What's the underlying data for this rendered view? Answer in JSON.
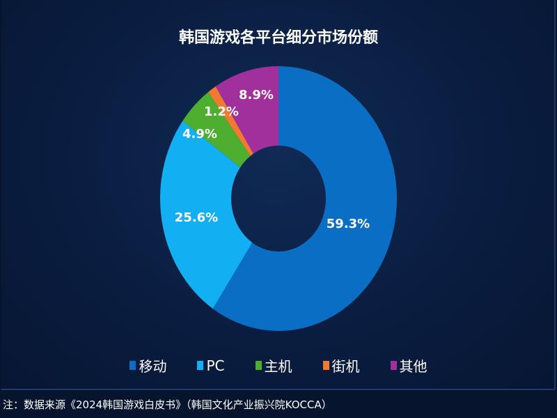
{
  "chart_data": {
    "type": "pie",
    "title": "韩国游戏各平台细分市场份额",
    "donut": true,
    "legend_position": "bottom",
    "slices": [
      {
        "label": "移动",
        "value": 59.3,
        "display": "59.3%",
        "color": "#0a6fc4"
      },
      {
        "label": "PC",
        "value": 25.6,
        "display": "25.6%",
        "color": "#12b0f2"
      },
      {
        "label": "主机",
        "value": 4.9,
        "display": "4.9%",
        "color": "#4dae2f"
      },
      {
        "label": "街机",
        "value": 1.2,
        "display": "1.2%",
        "color": "#f07b30"
      },
      {
        "label": "其他",
        "value": 8.9,
        "display": "8.9%",
        "color": "#a2309c"
      }
    ]
  },
  "footnote": "注：数据来源《2024韩国游戏白皮书》（韩国文化产业振兴院KOCCA）"
}
